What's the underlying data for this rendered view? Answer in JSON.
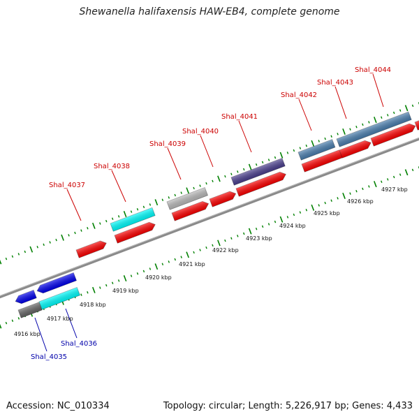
{
  "title": "Shewanella halifaxensis HAW-EB4, complete genome",
  "accession_label": "Accession: NC_010334",
  "topology_label": "Topology: circular; Length: 5,226,917 bp; Genes: 4,433",
  "ruler_labels": [
    "4916 kbp",
    "4917 kbp",
    "4918 kbp",
    "4919 kbp",
    "4920 kbp",
    "4921 kbp",
    "4922 kbp",
    "4923 kbp",
    "4924 kbp",
    "4925 kbp",
    "4926 kbp",
    "4927 kbp"
  ],
  "gene_labels_forward": [
    "Shal_4037",
    "Shal_4038",
    "Shal_4039",
    "Shal_4040",
    "Shal_4041",
    "Shal_4042",
    "Shal_4043",
    "Shal_4044"
  ],
  "gene_labels_reverse": [
    "Shal_4035",
    "Shal_4036"
  ],
  "colors": {
    "forward_label": "#cc0000",
    "reverse_label": "#0000aa",
    "cds_red": "#ff0000",
    "cyan": "#00ffff",
    "gray": "#bbbbbb",
    "purple": "#4b3f8f",
    "steelblue": "#4a7fb0",
    "blue": "#0000ee",
    "darkgray": "#666666",
    "ticks": "#008000",
    "backbone": "#888888"
  }
}
